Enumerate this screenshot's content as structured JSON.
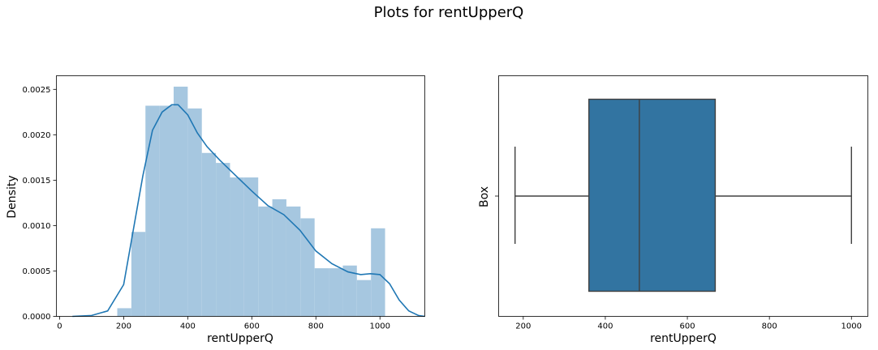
{
  "suptitle": "Plots for rentUpperQ",
  "chart_data": [
    {
      "type": "histogram",
      "xlabel": "rentUpperQ",
      "ylabel": "Density",
      "xlim": [
        -10,
        1140
      ],
      "ylim": [
        0,
        0.00265
      ],
      "xticks": [
        0,
        200,
        400,
        600,
        800,
        1000
      ],
      "yticks": [
        "0.0000",
        "0.0005",
        "0.0010",
        "0.0015",
        "0.0020",
        "0.0025"
      ],
      "ytick_values": [
        0,
        0.0005,
        0.001,
        0.0015,
        0.002,
        0.0025
      ],
      "bar_color": "#a6c7e0",
      "line_color": "#1f77b4",
      "bins": [
        {
          "x0": 180,
          "x1": 224,
          "density": 9e-05
        },
        {
          "x0": 224,
          "x1": 268,
          "density": 0.00093
        },
        {
          "x0": 268,
          "x1": 312,
          "density": 0.00232
        },
        {
          "x0": 312,
          "x1": 356,
          "density": 0.00232
        },
        {
          "x0": 356,
          "x1": 400,
          "density": 0.00253
        },
        {
          "x0": 400,
          "x1": 444,
          "density": 0.00229
        },
        {
          "x0": 444,
          "x1": 488,
          "density": 0.0018
        },
        {
          "x0": 488,
          "x1": 532,
          "density": 0.00169
        },
        {
          "x0": 532,
          "x1": 576,
          "density": 0.00153
        },
        {
          "x0": 576,
          "x1": 620,
          "density": 0.00153
        },
        {
          "x0": 620,
          "x1": 664,
          "density": 0.00121
        },
        {
          "x0": 664,
          "x1": 708,
          "density": 0.00129
        },
        {
          "x0": 708,
          "x1": 752,
          "density": 0.00121
        },
        {
          "x0": 752,
          "x1": 796,
          "density": 0.00108
        },
        {
          "x0": 796,
          "x1": 840,
          "density": 0.00053
        },
        {
          "x0": 840,
          "x1": 884,
          "density": 0.00053
        },
        {
          "x0": 884,
          "x1": 928,
          "density": 0.00056
        },
        {
          "x0": 928,
          "x1": 972,
          "density": 0.0004
        },
        {
          "x0": 972,
          "x1": 1016,
          "density": 0.00097
        }
      ],
      "kde": {
        "x": [
          40,
          100,
          150,
          200,
          230,
          260,
          290,
          320,
          350,
          370,
          400,
          430,
          460,
          500,
          550,
          600,
          650,
          700,
          750,
          800,
          850,
          900,
          940,
          970,
          1000,
          1030,
          1060,
          1090,
          1120,
          1140
        ],
        "y": [
          0,
          1e-05,
          6e-05,
          0.00035,
          0.00095,
          0.00155,
          0.00205,
          0.00225,
          0.00233,
          0.00233,
          0.00222,
          0.00202,
          0.00187,
          0.00172,
          0.00155,
          0.00138,
          0.00122,
          0.00112,
          0.00095,
          0.00072,
          0.00058,
          0.00049,
          0.00046,
          0.00047,
          0.00046,
          0.00036,
          0.00018,
          6e-05,
          1e-05,
          0
        ]
      }
    },
    {
      "type": "box",
      "xlabel": "rentUpperQ",
      "ylabel": "Box",
      "xlim": [
        140,
        1040
      ],
      "xticks": [
        200,
        400,
        600,
        800,
        1000
      ],
      "box_color": "#3274a1",
      "whisker_low": 180,
      "q1": 360,
      "median": 483,
      "q3": 668,
      "whisker_high": 1000
    }
  ]
}
